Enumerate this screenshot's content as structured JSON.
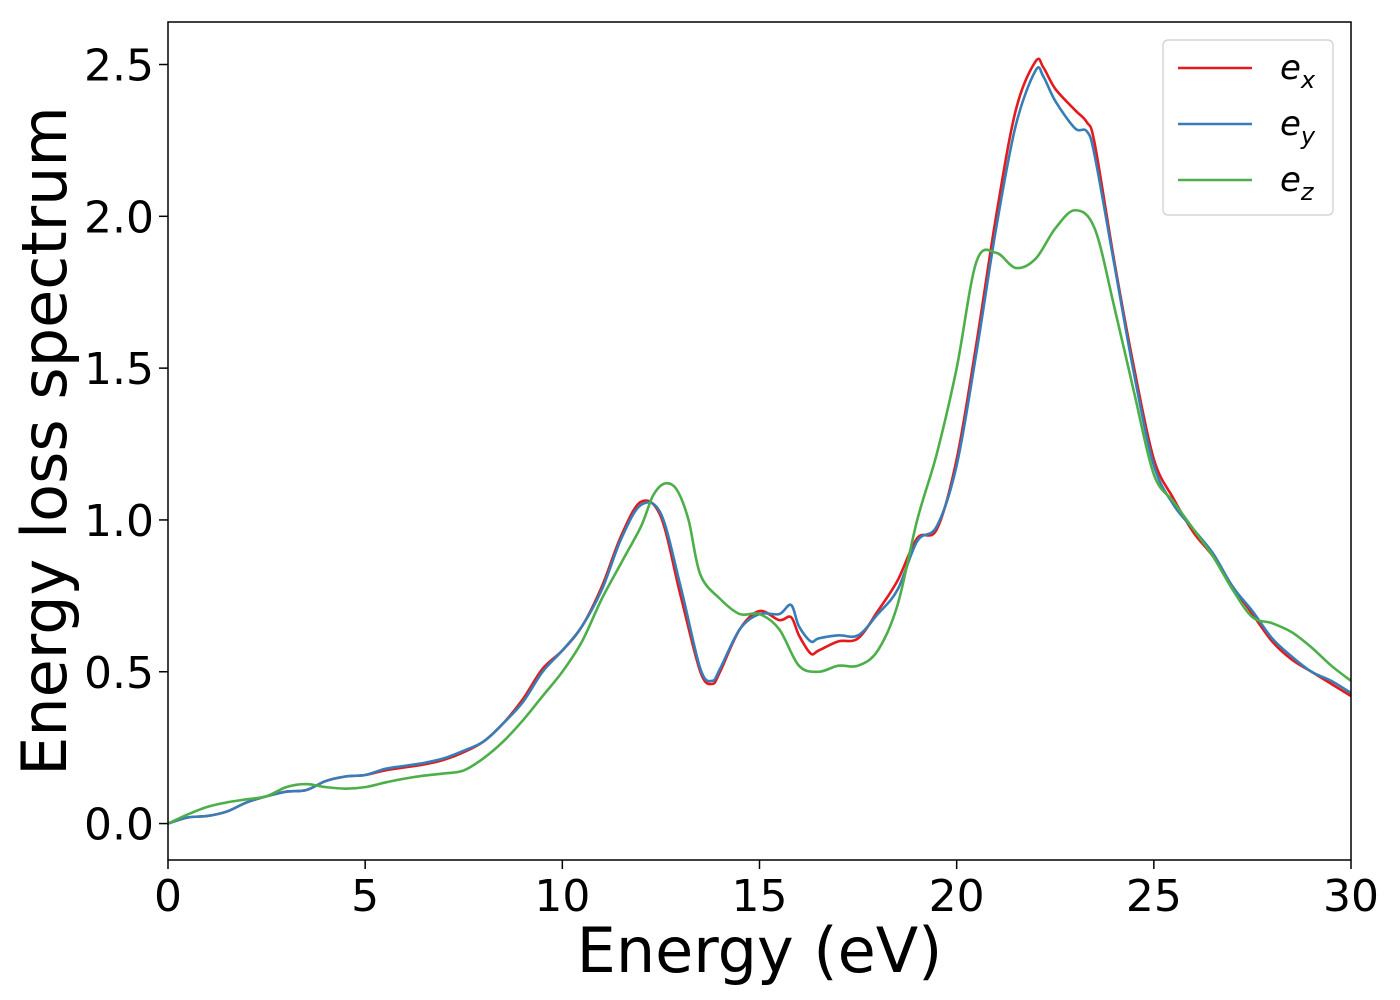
{
  "chart_data": {
    "type": "line",
    "xlabel": "Energy (eV)",
    "ylabel": "Energy loss spectrum",
    "xlim": [
      0,
      30
    ],
    "ylim": [
      -0.12,
      2.64
    ],
    "xticks": [
      0,
      5,
      10,
      15,
      20,
      25,
      30
    ],
    "xtick_labels": [
      "0",
      "5",
      "10",
      "15",
      "20",
      "25",
      "30"
    ],
    "yticks": [
      0.0,
      0.5,
      1.0,
      1.5,
      2.0,
      2.5
    ],
    "ytick_labels": [
      "0.0",
      "0.5",
      "1.0",
      "1.5",
      "2.0",
      "2.5"
    ],
    "grid": false,
    "legend_position": "top-right",
    "series": [
      {
        "name": "e_x",
        "legend_base": "e",
        "legend_sub": "x",
        "color": "#e41a1c",
        "x": [
          0,
          0.5,
          1,
          1.5,
          2,
          2.5,
          3,
          3.5,
          4,
          4.5,
          5,
          5.5,
          6,
          6.5,
          7,
          7.5,
          8,
          8.5,
          9,
          9.5,
          10,
          10.5,
          11,
          11.5,
          12,
          12.5,
          13,
          13.5,
          13.8,
          14,
          14.5,
          15,
          15.5,
          15.8,
          16,
          16.3,
          16.5,
          17,
          17.5,
          18,
          18.5,
          19,
          19.5,
          20,
          20.5,
          21,
          21.5,
          22,
          22.2,
          22.5,
          23,
          23.3,
          23.5,
          24,
          24.5,
          25,
          25.5,
          26,
          26.5,
          27,
          27.5,
          28,
          28.5,
          29,
          29.5,
          30
        ],
        "y": [
          0,
          0.02,
          0.025,
          0.04,
          0.07,
          0.09,
          0.105,
          0.11,
          0.14,
          0.155,
          0.16,
          0.175,
          0.185,
          0.195,
          0.21,
          0.235,
          0.27,
          0.33,
          0.41,
          0.51,
          0.57,
          0.65,
          0.78,
          0.95,
          1.06,
          1.01,
          0.75,
          0.5,
          0.46,
          0.5,
          0.64,
          0.7,
          0.67,
          0.68,
          0.62,
          0.56,
          0.57,
          0.6,
          0.61,
          0.7,
          0.8,
          0.94,
          0.97,
          1.2,
          1.58,
          2.0,
          2.35,
          2.51,
          2.49,
          2.42,
          2.35,
          2.31,
          2.24,
          1.85,
          1.5,
          1.2,
          1.07,
          0.96,
          0.88,
          0.78,
          0.69,
          0.6,
          0.54,
          0.5,
          0.46,
          0.42
        ]
      },
      {
        "name": "e_y",
        "legend_base": "e",
        "legend_sub": "y",
        "color": "#377eb8",
        "x": [
          0,
          0.5,
          1,
          1.5,
          2,
          2.5,
          3,
          3.5,
          4,
          4.5,
          5,
          5.5,
          6,
          6.5,
          7,
          7.5,
          8,
          8.5,
          9,
          9.5,
          10,
          10.5,
          11,
          11.5,
          12,
          12.5,
          13,
          13.5,
          13.8,
          14,
          14.5,
          15,
          15.5,
          15.8,
          16,
          16.3,
          16.5,
          17,
          17.5,
          18,
          18.5,
          19,
          19.5,
          20,
          20.5,
          21,
          21.5,
          22,
          22.2,
          22.5,
          23,
          23.3,
          23.5,
          24,
          24.5,
          25,
          25.5,
          26,
          26.5,
          27,
          27.5,
          28,
          28.5,
          29,
          29.5,
          30
        ],
        "y": [
          0,
          0.02,
          0.025,
          0.04,
          0.07,
          0.09,
          0.105,
          0.11,
          0.14,
          0.155,
          0.16,
          0.18,
          0.19,
          0.2,
          0.215,
          0.24,
          0.27,
          0.33,
          0.4,
          0.5,
          0.57,
          0.65,
          0.77,
          0.94,
          1.05,
          1.02,
          0.78,
          0.51,
          0.47,
          0.51,
          0.64,
          0.69,
          0.69,
          0.72,
          0.65,
          0.6,
          0.61,
          0.62,
          0.62,
          0.69,
          0.77,
          0.93,
          0.98,
          1.18,
          1.55,
          1.96,
          2.3,
          2.48,
          2.46,
          2.38,
          2.29,
          2.28,
          2.2,
          1.84,
          1.48,
          1.18,
          1.05,
          0.97,
          0.89,
          0.78,
          0.7,
          0.61,
          0.55,
          0.5,
          0.47,
          0.43
        ]
      },
      {
        "name": "e_z",
        "legend_base": "e",
        "legend_sub": "z",
        "color": "#4daf4a",
        "x": [
          0,
          0.5,
          1,
          1.5,
          2,
          2.5,
          3,
          3.5,
          4,
          4.5,
          5,
          5.5,
          6,
          6.5,
          7,
          7.5,
          8,
          8.5,
          9,
          9.5,
          10,
          10.5,
          11,
          11.5,
          12,
          12.3,
          12.6,
          12.9,
          13.2,
          13.5,
          14,
          14.5,
          15,
          15.5,
          16,
          16.5,
          17,
          17.5,
          18,
          18.5,
          19,
          19.5,
          20,
          20.5,
          21,
          21.5,
          22,
          22.5,
          23,
          23.5,
          24,
          24.5,
          25,
          25.5,
          26,
          26.5,
          27,
          27.5,
          28,
          28.5,
          29,
          29.5,
          30
        ],
        "y": [
          0,
          0.03,
          0.055,
          0.07,
          0.08,
          0.09,
          0.12,
          0.13,
          0.12,
          0.115,
          0.12,
          0.135,
          0.148,
          0.158,
          0.165,
          0.175,
          0.215,
          0.27,
          0.34,
          0.42,
          0.5,
          0.6,
          0.74,
          0.86,
          0.98,
          1.08,
          1.12,
          1.1,
          1.0,
          0.82,
          0.74,
          0.69,
          0.69,
          0.64,
          0.52,
          0.5,
          0.52,
          0.52,
          0.57,
          0.72,
          1.0,
          1.22,
          1.5,
          1.85,
          1.88,
          1.83,
          1.86,
          1.96,
          2.02,
          1.96,
          1.7,
          1.42,
          1.15,
          1.06,
          0.97,
          0.88,
          0.77,
          0.68,
          0.66,
          0.63,
          0.58,
          0.52,
          0.47
        ]
      }
    ]
  }
}
